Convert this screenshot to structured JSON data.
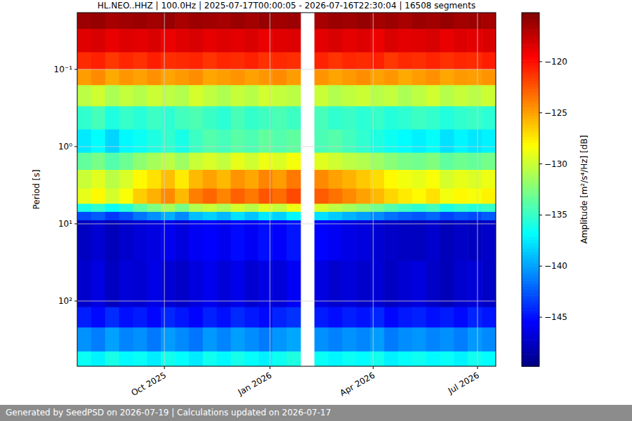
{
  "chart_data": {
    "type": "heatmap",
    "title": "HL.NEO..HHZ | 100.0Hz | 2025-07-17T00:00:05 - 2026-07-16T22:30:04 | 16508 segments",
    "y_label": "Period [s]",
    "xlim": [
      "2025-07-17T00:00:05",
      "2026-07-16T22:30:04"
    ],
    "xticks": [
      {
        "value": "2025-10-01T00:00:00",
        "label": "Oct 2025"
      },
      {
        "value": "2026-01-01T00:00:00",
        "label": "Jan 2026"
      },
      {
        "value": "2026-04-01T00:00:00",
        "label": "Apr 2026"
      },
      {
        "value": "2026-07-01T00:00:00",
        "label": "Jul 2026"
      }
    ],
    "ylim": [
      700,
      0.0184
    ],
    "yticks": [
      {
        "value": 0.1,
        "label": "10⁻¹"
      },
      {
        "value": 1,
        "label": "10⁰"
      },
      {
        "value": 10,
        "label": "10¹"
      },
      {
        "value": 100,
        "label": "10²"
      }
    ],
    "log": "y",
    "grid": true,
    "y_edges": [
      0.0184,
      0.03,
      0.06,
      0.1,
      0.16,
      0.3,
      0.6,
      1.2,
      2,
      3.5,
      5.5,
      7,
      9,
      30,
      120,
      220,
      450,
      700
    ],
    "cells": [
      [
        -116.2,
        -116.0,
        -116.5,
        -116.3,
        -116.1,
        -116.4,
        -116.0,
        -116.6,
        -116.2,
        -116.3,
        -116.5,
        -116.1,
        -116.4,
        -116.0,
        -116.3,
        -116.2,
        null,
        -116.5,
        -116.1,
        -116.3,
        -116.0,
        -116.4,
        -116.2,
        -116.6,
        -116.1,
        -116.3,
        -116.0,
        -116.4,
        -116.2,
        -116.5
      ],
      [
        -118.5,
        -118.2,
        -118.8,
        -118.4,
        -118.6,
        -118.3,
        -118.9,
        -118.5,
        -118.2,
        -118.7,
        -118.4,
        -118.6,
        -118.3,
        -118.8,
        -118.5,
        -118.4,
        null,
        -118.6,
        -118.2,
        -118.7,
        -118.4,
        -118.9,
        -118.3,
        -118.6,
        -118.5,
        -118.2,
        -118.8,
        -118.4,
        -118.6,
        -118.3
      ],
      [
        -121.0,
        -120.6,
        -121.4,
        -120.8,
        -121.2,
        -120.5,
        -121.1,
        -120.9,
        -120.7,
        -121.3,
        -120.8,
        -121.0,
        -120.6,
        -121.2,
        -120.9,
        -121.1,
        null,
        -120.7,
        -121.3,
        -120.8,
        -121.0,
        -120.6,
        -121.4,
        -120.9,
        -121.1,
        -120.7,
        -121.2,
        -120.8,
        -121.0,
        -120.5
      ],
      [
        -124.8,
        -124.2,
        -125.3,
        -124.6,
        -125.0,
        -124.4,
        -125.1,
        -124.7,
        -124.3,
        -125.2,
        -124.9,
        -124.5,
        -125.0,
        -124.6,
        -124.2,
        -124.8,
        null,
        -124.5,
        -125.1,
        -124.7,
        -124.3,
        -125.0,
        -124.6,
        -125.3,
        -124.8,
        -124.4,
        -125.2,
        -124.7,
        -124.9,
        -124.5
      ],
      [
        -130.5,
        -129.8,
        -131.0,
        -130.2,
        -130.7,
        -129.9,
        -130.4,
        -130.8,
        -129.6,
        -130.3,
        -130.9,
        -130.1,
        -130.6,
        -129.7,
        -130.2,
        -130.5,
        null,
        -130.0,
        -130.8,
        -130.3,
        -129.9,
        -130.6,
        -130.2,
        -131.0,
        -130.4,
        -129.8,
        -130.7,
        -130.1,
        -130.5,
        -129.9
      ],
      [
        -135.2,
        -134.5,
        -135.8,
        -135.0,
        -135.5,
        -134.8,
        -135.3,
        -134.6,
        -134.2,
        -134.9,
        -135.4,
        -134.4,
        -135.1,
        -134.7,
        -134.3,
        -134.8,
        null,
        -134.5,
        -135.2,
        -134.9,
        -135.4,
        -135.0,
        -135.6,
        -135.3,
        -134.8,
        -135.1,
        -135.7,
        -135.2,
        -134.9,
        -135.4
      ],
      [
        -137.5,
        -136.8,
        -138.2,
        -137.0,
        -136.5,
        -135.8,
        -135.2,
        -136.0,
        -134.8,
        -134.0,
        -134.5,
        -133.8,
        -134.2,
        -133.5,
        -134.0,
        -133.6,
        null,
        -134.3,
        -133.9,
        -134.6,
        -135.2,
        -135.8,
        -136.4,
        -136.9,
        -137.3,
        -136.7,
        -137.8,
        -137.1,
        -137.6,
        -137.2
      ],
      [
        -133.5,
        -132.8,
        -134.0,
        -133.2,
        -132.0,
        -131.2,
        -130.5,
        -131.5,
        -130.0,
        -129.5,
        -130.2,
        -129.0,
        -129.8,
        -128.8,
        -129.4,
        -128.5,
        null,
        -129.2,
        -129.8,
        -130.4,
        -130.8,
        -131.5,
        -132.2,
        -132.8,
        -133.0,
        -132.5,
        -133.6,
        -133.1,
        -133.4,
        -132.9
      ],
      [
        -130.0,
        -129.2,
        -130.5,
        -129.5,
        -128.0,
        -127.2,
        -126.0,
        -127.5,
        -125.8,
        -125.0,
        -125.8,
        -124.5,
        -125.2,
        -124.0,
        -124.8,
        -123.6,
        null,
        -124.2,
        -125.0,
        -125.6,
        -126.3,
        -127.0,
        -128.0,
        -128.6,
        -129.0,
        -128.4,
        -129.6,
        -129.0,
        -129.4,
        -128.8
      ],
      [
        -129.0,
        -128.0,
        -129.6,
        -128.4,
        -126.5,
        -125.5,
        -124.2,
        -125.8,
        -123.8,
        -123.0,
        -124.0,
        -122.8,
        -123.6,
        -122.4,
        -123.2,
        -122.0,
        null,
        -122.6,
        -123.4,
        -124.2,
        -125.0,
        -125.8,
        -126.8,
        -127.5,
        -128.0,
        -127.2,
        -128.6,
        -128.0,
        -128.4,
        -127.8
      ],
      [
        -136.0,
        -135.2,
        -136.6,
        -135.6,
        -133.8,
        -132.6,
        -131.2,
        -132.8,
        -130.8,
        -130.0,
        -131.0,
        -129.6,
        -130.5,
        -129.2,
        -130.2,
        -128.8,
        null,
        -129.5,
        -130.4,
        -131.2,
        -132.0,
        -133.0,
        -134.0,
        -134.8,
        -135.3,
        -134.6,
        -135.9,
        -135.2,
        -135.6,
        -135.0
      ],
      [
        -143.0,
        -142.4,
        -143.6,
        -142.8,
        -141.5,
        -140.6,
        -139.5,
        -140.8,
        -139.0,
        -138.4,
        -139.2,
        -137.8,
        -138.8,
        -137.5,
        -138.4,
        -137.0,
        null,
        -137.8,
        -138.6,
        -139.4,
        -140.0,
        -140.8,
        -141.6,
        -142.2,
        -142.6,
        -142.0,
        -143.2,
        -142.6,
        -143.0,
        -142.4
      ],
      [
        -147.5,
        -147.0,
        -147.8,
        -147.2,
        -146.8,
        -146.5,
        -146.0,
        -146.6,
        -145.8,
        -145.5,
        -146.0,
        -145.2,
        -145.8,
        -145.0,
        -145.6,
        -144.8,
        null,
        -145.4,
        -145.9,
        -146.3,
        -146.6,
        -147.0,
        -147.3,
        -147.5,
        -147.6,
        -147.2,
        -147.8,
        -147.4,
        -147.6,
        -147.3
      ],
      [
        -147.2,
        -146.5,
        -147.6,
        -146.8,
        -147.0,
        -146.3,
        -146.9,
        -147.3,
        -146.6,
        -146.0,
        -146.8,
        -146.2,
        -147.0,
        -146.4,
        -146.8,
        -145.8,
        null,
        -146.5,
        -147.1,
        -146.7,
        -147.2,
        -146.9,
        -147.5,
        -147.0,
        -146.6,
        -147.3,
        -147.8,
        -147.1,
        -146.8,
        -147.4
      ],
      [
        -144.5,
        -145.2,
        -144.0,
        -145.0,
        -144.6,
        -145.3,
        -144.2,
        -144.8,
        -145.4,
        -144.4,
        -145.0,
        -144.1,
        -144.7,
        -145.2,
        -144.3,
        -143.8,
        null,
        -144.6,
        -145.1,
        -144.5,
        -144.9,
        -144.2,
        -145.3,
        -144.7,
        -144.4,
        -145.0,
        -144.6,
        -145.2,
        -144.3,
        -144.8
      ],
      [
        -140.5,
        -141.2,
        -140.0,
        -141.0,
        -140.6,
        -141.4,
        -140.2,
        -140.8,
        -141.5,
        -140.3,
        -141.0,
        -140.1,
        -140.7,
        -141.3,
        -140.4,
        -139.8,
        null,
        -140.6,
        -141.1,
        -140.5,
        -140.9,
        -140.2,
        -141.3,
        -140.7,
        -140.4,
        -141.0,
        -140.6,
        -141.2,
        -140.3,
        -140.8
      ],
      [
        -136.5,
        -137.2,
        -136.0,
        -137.0,
        -136.6,
        -137.4,
        -136.2,
        -136.8,
        -137.5,
        -136.3,
        -137.0,
        -136.1,
        -136.7,
        -137.3,
        -136.4,
        -135.8,
        null,
        -136.6,
        -137.1,
        -136.5,
        -136.9,
        -136.2,
        -137.3,
        -136.7,
        -136.4,
        -137.0,
        -136.6,
        -137.2,
        -136.3,
        -136.8
      ]
    ],
    "colorbar": {
      "label": "Amplitude [m²/s⁴/Hz] [dB]",
      "clim": [
        -149.8,
        -115.2
      ],
      "ticks": [
        {
          "value": -120,
          "label": "−120"
        },
        {
          "value": -125,
          "label": "−125"
        },
        {
          "value": -130,
          "label": "−130"
        },
        {
          "value": -135,
          "label": "−135"
        },
        {
          "value": -140,
          "label": "−140"
        },
        {
          "value": -145,
          "label": "−145"
        }
      ]
    }
  },
  "footer": "Generated by SeedPSD on 2026-07-19 | Calculations updated on 2026-07-17"
}
